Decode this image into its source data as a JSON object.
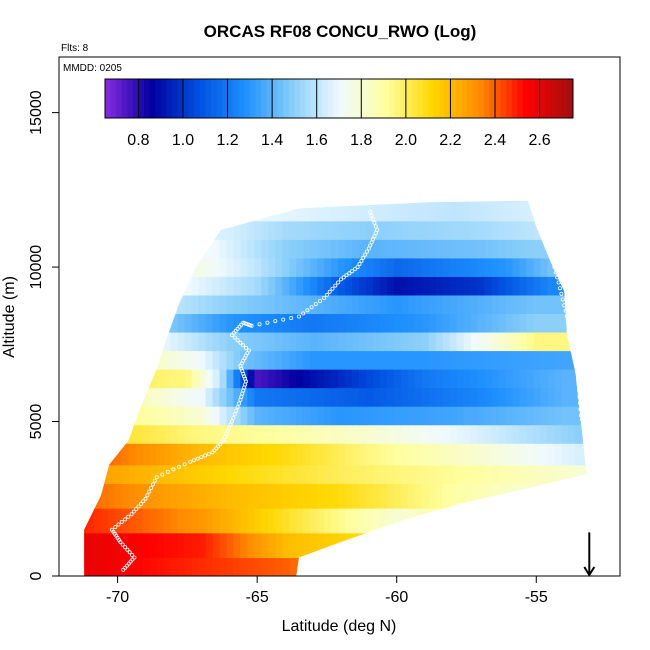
{
  "chart_data": {
    "type": "heatmap",
    "title": "ORCAS RF08 CONCU_RWO (Log)",
    "annotations": {
      "flights": "Flts: 8",
      "date": "MMDD: 0205"
    },
    "xlabel": "Latitude (deg N)",
    "ylabel": "Altitude (m)",
    "xlim": [
      -72.1,
      -52.0
    ],
    "ylim": [
      0,
      16800
    ],
    "xticks": [
      -70,
      -65,
      -60,
      -55
    ],
    "xtick_labels": [
      "-70",
      "-65",
      "-60",
      "-55"
    ],
    "yticks": [
      0,
      5000,
      10000,
      15000
    ],
    "ytick_labels": [
      "0",
      "5000",
      "10000",
      "15000"
    ],
    "colorbar": {
      "range": [
        0.65,
        2.75
      ],
      "ticks": [
        0.8,
        1.0,
        1.2,
        1.4,
        1.6,
        1.8,
        2.0,
        2.2,
        2.4,
        2.6
      ],
      "tick_labels": [
        "0.8",
        "1.0",
        "1.2",
        "1.4",
        "1.6",
        "1.8",
        "2.0",
        "2.2",
        "2.4",
        "2.6"
      ],
      "colors": [
        "#8a2be2",
        "#0000a0",
        "#0050e0",
        "#1e90ff",
        "#87cefa",
        "#f0faff",
        "#ffffa0",
        "#ffd700",
        "#ff8c00",
        "#ff0000",
        "#a01010"
      ]
    },
    "domain_outline": [
      [
        -71.2,
        0
      ],
      [
        -71.2,
        1500
      ],
      [
        -70.6,
        2600
      ],
      [
        -70.3,
        3600
      ],
      [
        -69.6,
        4400
      ],
      [
        -69.2,
        5400
      ],
      [
        -68.6,
        6700
      ],
      [
        -68.2,
        7800
      ],
      [
        -67.8,
        8800
      ],
      [
        -67.2,
        10000
      ],
      [
        -66.3,
        11200
      ],
      [
        -63.5,
        11900
      ],
      [
        -58.8,
        12100
      ],
      [
        -55.3,
        12150
      ],
      [
        -55.0,
        11300
      ],
      [
        -54.5,
        10200
      ],
      [
        -54.0,
        9200
      ],
      [
        -53.9,
        7800
      ],
      [
        -53.6,
        6600
      ],
      [
        -53.4,
        5000
      ],
      [
        -53.2,
        3300
      ],
      [
        -55.0,
        2900
      ],
      [
        -57.5,
        2400
      ],
      [
        -59.8,
        1800
      ],
      [
        -62.0,
        1100
      ],
      [
        -63.5,
        600
      ],
      [
        -63.6,
        0
      ]
    ],
    "field_bands": [
      {
        "alt": [
          0,
          600
        ],
        "lat_values": [
          [
            -71.5,
            2.6
          ],
          [
            -68,
            2.5
          ],
          [
            -64,
            2.4
          ],
          [
            -62,
            2.3
          ]
        ]
      },
      {
        "alt": [
          600,
          1400
        ],
        "lat_values": [
          [
            -71.5,
            2.6
          ],
          [
            -67,
            2.5
          ],
          [
            -64,
            2.2
          ],
          [
            -61,
            2.1
          ]
        ]
      },
      {
        "alt": [
          1400,
          2200
        ],
        "lat_values": [
          [
            -71.5,
            2.5
          ],
          [
            -67,
            2.3
          ],
          [
            -63,
            2.0
          ],
          [
            -60,
            1.8
          ],
          [
            -57.5,
            1.9
          ]
        ]
      },
      {
        "alt": [
          2200,
          3000
        ],
        "lat_values": [
          [
            -71.5,
            2.4
          ],
          [
            -66,
            2.2
          ],
          [
            -62,
            2.1
          ],
          [
            -58,
            1.9
          ],
          [
            -55,
            1.8
          ]
        ]
      },
      {
        "alt": [
          3000,
          3600
        ],
        "lat_values": [
          [
            -71.5,
            2.3
          ],
          [
            -67,
            2.15
          ],
          [
            -62,
            2.0
          ],
          [
            -57,
            1.9
          ],
          [
            -53.5,
            1.8
          ]
        ]
      },
      {
        "alt": [
          3600,
          4300
        ],
        "lat_values": [
          [
            -71.5,
            2.45
          ],
          [
            -67,
            2.2
          ],
          [
            -64,
            2.1
          ],
          [
            -61,
            1.95
          ],
          [
            -57,
            1.8
          ],
          [
            -53.5,
            1.65
          ]
        ]
      },
      {
        "alt": [
          4300,
          4900
        ],
        "lat_values": [
          [
            -71,
            2.1
          ],
          [
            -67,
            1.95
          ],
          [
            -64,
            1.9
          ],
          [
            -61,
            1.8
          ],
          [
            -57,
            1.65
          ],
          [
            -53.5,
            1.5
          ]
        ]
      },
      {
        "alt": [
          4900,
          5500
        ],
        "lat_values": [
          [
            -70,
            1.95
          ],
          [
            -67,
            1.8
          ],
          [
            -65,
            1.4
          ],
          [
            -62,
            1.3
          ],
          [
            -58,
            1.35
          ],
          [
            -54,
            1.45
          ]
        ]
      },
      {
        "alt": [
          5500,
          6100
        ],
        "lat_values": [
          [
            -70,
            1.9
          ],
          [
            -67,
            1.7
          ],
          [
            -65,
            1.2
          ],
          [
            -61,
            1.1
          ],
          [
            -57,
            1.25
          ],
          [
            -54,
            1.4
          ]
        ]
      },
      {
        "alt": [
          6100,
          6700
        ],
        "lat_values": [
          [
            -69.5,
            2.0
          ],
          [
            -67.5,
            1.95
          ],
          [
            -66.3,
            1.6
          ],
          [
            -65,
            0.75
          ],
          [
            -63,
            0.9
          ],
          [
            -59,
            1.2
          ],
          [
            -54,
            1.4
          ]
        ]
      },
      {
        "alt": [
          6700,
          7300
        ],
        "lat_values": [
          [
            -69,
            1.85
          ],
          [
            -67,
            1.7
          ],
          [
            -65.5,
            1.45
          ],
          [
            -63,
            1.3
          ],
          [
            -59,
            1.3
          ],
          [
            -54,
            1.35
          ]
        ]
      },
      {
        "alt": [
          7300,
          7900
        ],
        "lat_values": [
          [
            -68.5,
            1.7
          ],
          [
            -66,
            1.5
          ],
          [
            -63,
            1.4
          ],
          [
            -59,
            1.5
          ],
          [
            -55,
            1.95
          ]
        ]
      },
      {
        "alt": [
          7900,
          8500
        ],
        "lat_values": [
          [
            -68.5,
            1.5
          ],
          [
            -66,
            1.3
          ],
          [
            -63,
            1.2
          ],
          [
            -59,
            1.3
          ],
          [
            -55,
            1.5
          ]
        ]
      },
      {
        "alt": [
          8500,
          9100
        ],
        "lat_values": [
          [
            -68,
            1.6
          ],
          [
            -66,
            1.5
          ],
          [
            -63,
            1.4
          ],
          [
            -60,
            1.3
          ],
          [
            -55,
            1.45
          ]
        ]
      },
      {
        "alt": [
          9100,
          9700
        ],
        "lat_values": [
          [
            -67.5,
            1.7
          ],
          [
            -65,
            1.55
          ],
          [
            -62,
            1.1
          ],
          [
            -60,
            0.9
          ],
          [
            -57,
            1.0
          ],
          [
            -54.5,
            1.25
          ]
        ]
      },
      {
        "alt": [
          9700,
          10300
        ],
        "lat_values": [
          [
            -67,
            1.75
          ],
          [
            -65,
            1.6
          ],
          [
            -62,
            1.3
          ],
          [
            -60,
            1.15
          ],
          [
            -56,
            1.3
          ],
          [
            -54.5,
            1.45
          ]
        ]
      },
      {
        "alt": [
          10300,
          10900
        ],
        "lat_values": [
          [
            -66.5,
            1.7
          ],
          [
            -64,
            1.5
          ],
          [
            -61,
            1.4
          ],
          [
            -57,
            1.45
          ],
          [
            -55,
            1.5
          ]
        ]
      },
      {
        "alt": [
          10900,
          11500
        ],
        "lat_values": [
          [
            -66,
            1.65
          ],
          [
            -64,
            1.55
          ],
          [
            -61,
            1.5
          ],
          [
            -57,
            1.55
          ],
          [
            -55,
            1.6
          ]
        ]
      },
      {
        "alt": [
          11500,
          12200
        ],
        "lat_values": [
          [
            -66,
            1.7
          ],
          [
            -62,
            1.65
          ],
          [
            -58,
            1.6
          ],
          [
            -55,
            1.65
          ]
        ]
      }
    ],
    "flight_track": [
      [
        -69.8,
        200
      ],
      [
        -69.4,
        600
      ],
      [
        -69.9,
        1100
      ],
      [
        -70.2,
        1500
      ],
      [
        -69.5,
        2000
      ],
      [
        -69.0,
        2500
      ],
      [
        -68.6,
        3200
      ],
      [
        -67.4,
        3700
      ],
      [
        -66.6,
        4000
      ],
      [
        -66.2,
        4400
      ],
      [
        -65.9,
        5000
      ],
      [
        -65.6,
        5700
      ],
      [
        -65.4,
        6300
      ],
      [
        -65.6,
        6800
      ],
      [
        -65.3,
        7300
      ],
      [
        -65.9,
        7800
      ],
      [
        -65.5,
        8200
      ],
      [
        -65.2,
        8100
      ],
      [
        -63.5,
        8400
      ],
      [
        -62.6,
        9000
      ],
      [
        -62.0,
        9600
      ],
      [
        -61.4,
        10000
      ],
      [
        -61.0,
        10600
      ],
      [
        -60.7,
        11200
      ],
      [
        -61.0,
        11900
      ]
    ],
    "flight_track_right": [
      [
        -54.7,
        11800
      ],
      [
        -54.5,
        10500
      ],
      [
        -54.2,
        9500
      ],
      [
        -53.9,
        8400
      ],
      [
        -53.7,
        7600
      ],
      [
        -53.5,
        6400
      ],
      [
        -53.4,
        5200
      ],
      [
        -53.2,
        4400
      ]
    ],
    "marker": {
      "type": "arrow-down",
      "lat": -53.1,
      "alt_top": 700,
      "alt_bottom": 0
    }
  }
}
